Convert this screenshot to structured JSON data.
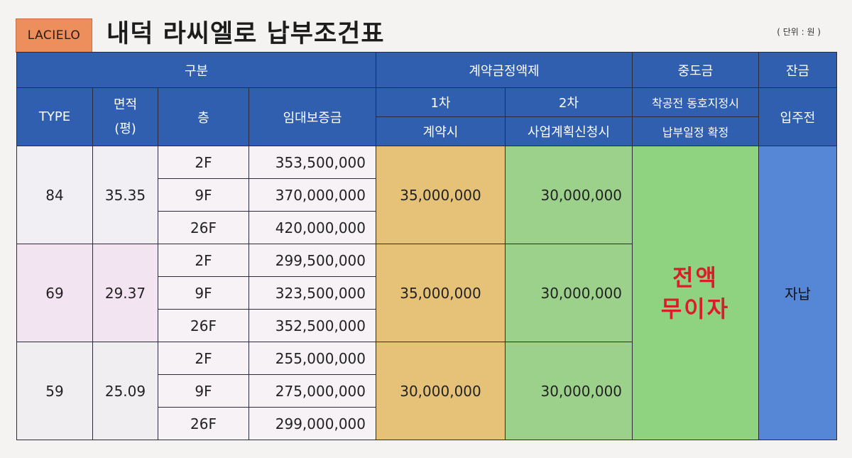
{
  "header": {
    "brand": "LACIELO",
    "title": "내덕 라씨엘로 납부조건표",
    "unit": "( 단위 : 원 )"
  },
  "table": {
    "h_category": "구분",
    "h_contract_fixed": "계약금정액제",
    "h_interim": "중도금",
    "h_balance": "잔금",
    "h_type": "TYPE",
    "h_area": "면적\n(평)",
    "h_floor": "층",
    "h_deposit": "임대보증금",
    "h_first": "1차",
    "h_second": "2차",
    "h_interim_sub1": "착공전 동호지정시",
    "h_balance_sub": "입주전",
    "h_first_sub": "계약시",
    "h_second_sub": "사업계획신청시",
    "h_interim_sub2": "납부일정 확정",
    "groups": [
      {
        "type": "84",
        "area": "35.35",
        "first": "35,000,000",
        "second": "30,000,000",
        "rows": [
          {
            "floor": "2F",
            "deposit": "353,500,000"
          },
          {
            "floor": "9F",
            "deposit": "370,000,000"
          },
          {
            "floor": "26F",
            "deposit": "420,000,000"
          }
        ]
      },
      {
        "type": "69",
        "area": "29.37",
        "first": "35,000,000",
        "second": "30,000,000",
        "rows": [
          {
            "floor": "2F",
            "deposit": "299,500,000"
          },
          {
            "floor": "9F",
            "deposit": "323,500,000"
          },
          {
            "floor": "26F",
            "deposit": "352,500,000"
          }
        ]
      },
      {
        "type": "59",
        "area": "25.09",
        "first": "30,000,000",
        "second": "30,000,000",
        "rows": [
          {
            "floor": "2F",
            "deposit": "255,000,000"
          },
          {
            "floor": "9F",
            "deposit": "275,000,000"
          },
          {
            "floor": "26F",
            "deposit": "299,000,000"
          }
        ]
      }
    ],
    "interim_value": "전액\n무이자",
    "balance_value": "자납"
  }
}
